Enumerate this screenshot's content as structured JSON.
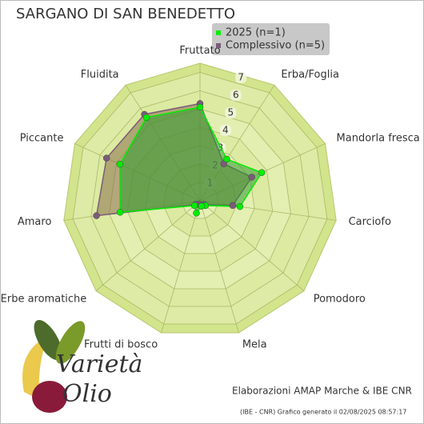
{
  "chart_data": {
    "type": "radar",
    "title": "SARGANO DI SAN BENEDETTO",
    "categories": [
      "Fruttato",
      "Erba/Foglia",
      "Mandorla fresca",
      "Carciofo",
      "Pomodoro",
      "Mela",
      "Frutti di bosco",
      "Erbe aromatiche",
      "Amaro",
      "Piccante",
      "Fluidita"
    ],
    "series": [
      {
        "name": "Complessivo (n=5)",
        "color": "#7a5c78",
        "fill": "#8b6f4e",
        "values": [
          5.3,
          2.4,
          3.1,
          1.8,
          0.3,
          0.3,
          0.2,
          0.3,
          5.7,
          5.6,
          5.6
        ]
      },
      {
        "name": "2025 (n=1)",
        "color": "#00ee00",
        "fill": "#2e9a2e",
        "values": [
          5.1,
          2.7,
          3.7,
          2.2,
          0.4,
          0.3,
          0.7,
          0.4,
          4.4,
          4.8,
          5.4
        ]
      }
    ],
    "rlim": [
      0,
      7.5
    ],
    "rticks": [
      1,
      2,
      3,
      4,
      5,
      6,
      7
    ],
    "grid": true,
    "legend": "upper right",
    "brand": [
      "Varietà",
      "Olio"
    ],
    "footer": [
      "Elaborazioni AMAP Marche & IBE CNR",
      "(IBE - CNR) Grafico generato il 02/08/2025 08:57:17"
    ]
  }
}
